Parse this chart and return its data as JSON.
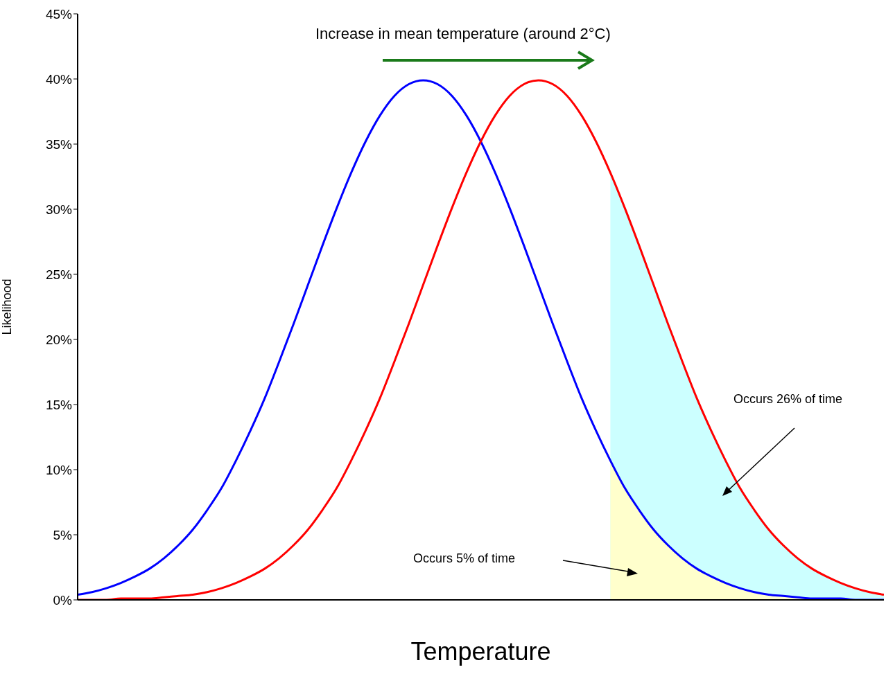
{
  "chart_data": {
    "type": "line",
    "xlabel": "Temperature",
    "ylabel": "Likelihood",
    "annotations": [
      "Increase in mean temperature (around 2°C)",
      "Occurs 26% of time",
      "Occurs 5% of time"
    ],
    "categories": [
      null,
      null,
      null,
      null,
      null,
      null,
      null,
      null,
      null,
      null,
      null,
      null,
      null,
      null,
      null,
      null,
      null,
      null,
      null,
      null,
      null,
      null,
      null,
      null,
      null,
      null,
      null,
      null,
      null,
      null,
      null,
      null,
      null,
      null,
      null,
      null,
      null,
      null,
      null,
      null,
      null,
      null,
      null,
      null,
      null,
      null,
      null,
      null,
      null,
      null,
      null,
      null,
      null,
      null,
      null,
      null,
      null
    ],
    "series": [
      {
        "type": "area",
        "color": "#ccffff",
        "values": [
          null,
          null,
          null,
          null,
          null,
          null,
          null,
          null,
          null,
          null,
          null,
          null,
          null,
          null,
          null,
          null,
          null,
          null,
          null,
          null,
          null,
          null,
          null,
          null,
          null,
          null,
          null,
          null,
          null,
          null,
          null,
          null,
          null,
          null,
          null,
          null,
          null,
          32.8,
          30.1,
          27.2,
          24.2,
          21.2,
          18.3,
          15.5,
          13.0,
          10.7,
          8.6,
          6.9,
          5.4,
          4.2,
          3.2,
          2.4,
          1.8,
          1.3,
          0.9,
          0.6,
          0.4
        ]
      },
      {
        "type": "area",
        "color": "#ffffcc",
        "values": [
          null,
          null,
          null,
          null,
          null,
          null,
          null,
          null,
          null,
          null,
          null,
          null,
          null,
          null,
          null,
          null,
          null,
          null,
          null,
          null,
          null,
          null,
          null,
          null,
          null,
          null,
          null,
          null,
          null,
          null,
          null,
          null,
          null,
          null,
          null,
          null,
          null,
          10.7,
          8.6,
          6.9,
          5.4,
          4.2,
          3.2,
          2.4,
          1.8,
          1.3,
          0.9,
          0.6,
          0.4,
          0.3,
          0.2,
          0.1,
          0.1,
          0.1,
          0,
          0,
          0
        ]
      },
      {
        "color": "#0000ff",
        "values": [
          0.4,
          0.6,
          0.9,
          1.3,
          1.8,
          2.4,
          3.2,
          4.2,
          5.4,
          6.9,
          8.6,
          10.7,
          13.0,
          15.5,
          18.3,
          21.2,
          24.2,
          27.2,
          30.1,
          32.8,
          35.2,
          37.2,
          38.7,
          39.6,
          39.9,
          39.6,
          38.7,
          37.2,
          35.2,
          32.8,
          30.1,
          27.2,
          24.2,
          21.2,
          18.3,
          15.5,
          13.0,
          10.7,
          8.6,
          6.9,
          5.4,
          4.2,
          3.2,
          2.4,
          1.8,
          1.3,
          0.9,
          0.6,
          0.4,
          0.3,
          0.2,
          0.1,
          0.1,
          0.1,
          0,
          0,
          0
        ]
      },
      {
        "color": "#ff0000",
        "values": [
          0,
          0,
          0,
          0.1,
          0.1,
          0.1,
          0.2,
          0.3,
          0.4,
          0.6,
          0.9,
          1.3,
          1.8,
          2.4,
          3.2,
          4.2,
          5.4,
          6.9,
          8.6,
          10.7,
          13.0,
          15.5,
          18.3,
          21.2,
          24.2,
          27.2,
          30.1,
          32.8,
          35.2,
          37.2,
          38.7,
          39.6,
          39.9,
          39.6,
          38.7,
          37.2,
          35.2,
          32.8,
          30.1,
          27.2,
          24.2,
          21.2,
          18.3,
          15.5,
          13.0,
          10.7,
          8.6,
          6.9,
          5.4,
          4.2,
          3.2,
          2.4,
          1.8,
          1.3,
          0.9,
          0.6,
          0.4
        ]
      }
    ],
    "ylim": [
      0,
      45
    ],
    "yticks": [
      {
        "value": 0,
        "label": "0%"
      },
      {
        "value": 5,
        "label": "5%"
      },
      {
        "value": 10,
        "label": "10%"
      },
      {
        "value": 15,
        "label": "15%"
      },
      {
        "value": 20,
        "label": "20%"
      },
      {
        "value": 25,
        "label": "25%"
      },
      {
        "value": 30,
        "label": "30%"
      },
      {
        "value": 35,
        "label": "35%"
      },
      {
        "value": 40,
        "label": "40%"
      },
      {
        "value": 45,
        "label": "45%"
      }
    ]
  }
}
